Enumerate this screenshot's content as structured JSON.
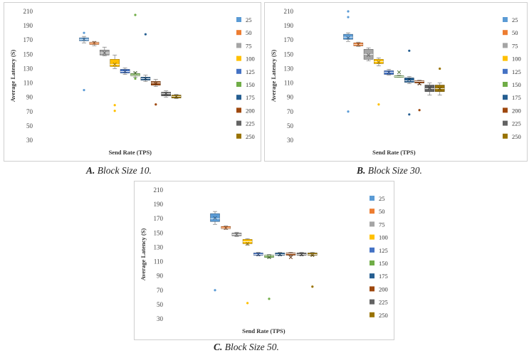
{
  "colors": {
    "25": "#5b9bd5",
    "50": "#ed7d31",
    "75": "#a5a5a5",
    "100": "#ffc000",
    "125": "#4472c4",
    "150": "#70ad47",
    "175": "#255e91",
    "200": "#9e480e",
    "225": "#636363",
    "250": "#997300"
  },
  "captions": [
    {
      "letter": "A.",
      "text": "Block Size 10."
    },
    {
      "letter": "B.",
      "text": "Block Size 30."
    },
    {
      "letter": "C.",
      "text": "Block Size 50."
    }
  ],
  "chart_data": [
    {
      "type": "boxplot",
      "title": "A. Block Size 10.",
      "xlabel": "Send Rate (TPS)",
      "ylabel": "Average Latency (S)",
      "ylim": [
        30,
        210
      ],
      "yticks": [
        30,
        50,
        70,
        90,
        110,
        130,
        150,
        170,
        190,
        210
      ],
      "legend": [
        "25",
        "50",
        "75",
        "100",
        "125",
        "150",
        "175",
        "200",
        "225",
        "250"
      ],
      "boxes": [
        {
          "name": "25",
          "min": 166,
          "q1": 169,
          "median": 171,
          "q3": 173,
          "max": 175,
          "mean": 171,
          "outliers": [
            180,
            100
          ]
        },
        {
          "name": "50",
          "min": 162,
          "q1": 164,
          "median": 166,
          "q3": 167,
          "max": 168,
          "mean": 166,
          "outliers": []
        },
        {
          "name": "75",
          "min": 148,
          "q1": 149,
          "median": 152,
          "q3": 156,
          "max": 160,
          "mean": 152,
          "outliers": []
        },
        {
          "name": "100",
          "min": 130,
          "q1": 133,
          "median": 136,
          "q3": 143,
          "max": 149,
          "mean": 136,
          "outliers": [
            79,
            71
          ]
        },
        {
          "name": "125",
          "min": 122,
          "q1": 124,
          "median": 126,
          "q3": 129,
          "max": 131,
          "mean": 126,
          "outliers": []
        },
        {
          "name": "150",
          "min": 118,
          "q1": 120,
          "median": 121,
          "q3": 123,
          "max": 125,
          "mean": 124,
          "outliers": [
            205,
            116
          ]
        },
        {
          "name": "175",
          "min": 112,
          "q1": 114,
          "median": 116,
          "q3": 118,
          "max": 121,
          "mean": 116,
          "outliers": [
            178
          ]
        },
        {
          "name": "200",
          "min": 105,
          "q1": 107,
          "median": 110,
          "q3": 112,
          "max": 115,
          "mean": 109,
          "outliers": [
            80
          ]
        },
        {
          "name": "225",
          "min": 90,
          "q1": 92,
          "median": 95,
          "q3": 97,
          "max": 99,
          "mean": 95,
          "outliers": []
        },
        {
          "name": "250",
          "min": 88,
          "q1": 89,
          "median": 91,
          "q3": 93,
          "max": 94,
          "mean": 91,
          "outliers": []
        }
      ]
    },
    {
      "type": "boxplot",
      "title": "B. Block Size 30.",
      "xlabel": "Send Rate (TPS)",
      "ylabel": "Average Latency (S)",
      "ylim": [
        30,
        210
      ],
      "yticks": [
        30,
        50,
        70,
        90,
        110,
        130,
        150,
        170,
        190,
        210
      ],
      "legend": [
        "25",
        "50",
        "75",
        "100",
        "125",
        "150",
        "175",
        "200",
        "225",
        "250"
      ],
      "boxes": [
        {
          "name": "25",
          "min": 168,
          "q1": 171,
          "median": 174,
          "q3": 178,
          "max": 180,
          "mean": 173,
          "outliers": [
            210,
            202,
            70
          ]
        },
        {
          "name": "50",
          "min": 161,
          "q1": 162,
          "median": 164,
          "q3": 166,
          "max": 167,
          "mean": 164,
          "outliers": []
        },
        {
          "name": "75",
          "min": 141,
          "q1": 143,
          "median": 150,
          "q3": 157,
          "max": 159,
          "mean": 149,
          "outliers": []
        },
        {
          "name": "100",
          "min": 134,
          "q1": 137,
          "median": 140,
          "q3": 143,
          "max": 145,
          "mean": 139,
          "outliers": [
            80
          ]
        },
        {
          "name": "125",
          "min": 121,
          "q1": 122,
          "median": 125,
          "q3": 127,
          "max": 129,
          "mean": 125,
          "outliers": []
        },
        {
          "name": "150",
          "min": 118,
          "q1": 118,
          "median": 119,
          "q3": 120,
          "max": 121,
          "mean": 125,
          "outliers": []
        },
        {
          "name": "175",
          "min": 109,
          "q1": 111,
          "median": 113,
          "q3": 117,
          "max": 119,
          "mean": 115,
          "outliers": [
            155,
            66
          ]
        },
        {
          "name": "200",
          "min": 108,
          "q1": 110,
          "median": 112,
          "q3": 113,
          "max": 114,
          "mean": 109,
          "outliers": [
            72
          ]
        },
        {
          "name": "225",
          "min": 93,
          "q1": 98,
          "median": 102,
          "q3": 107,
          "max": 110,
          "mean": 103,
          "outliers": []
        },
        {
          "name": "250",
          "min": 93,
          "q1": 98,
          "median": 102,
          "q3": 107,
          "max": 110,
          "mean": 102,
          "outliers": [
            130
          ]
        }
      ]
    },
    {
      "type": "boxplot",
      "title": "C. Block Size 50.",
      "xlabel": "Send Rate (TPS)",
      "ylabel": "Average Latency (S)",
      "ylim": [
        30,
        210
      ],
      "yticks": [
        30,
        50,
        70,
        90,
        110,
        130,
        150,
        170,
        190,
        210
      ],
      "legend": [
        "25",
        "50",
        "75",
        "100",
        "125",
        "150",
        "175",
        "200",
        "225",
        "250"
      ],
      "boxes": [
        {
          "name": "25",
          "min": 162,
          "q1": 166,
          "median": 170,
          "q3": 177,
          "max": 180,
          "mean": 171,
          "outliers": [
            70
          ]
        },
        {
          "name": "50",
          "min": 155,
          "q1": 156,
          "median": 157,
          "q3": 159,
          "max": 160,
          "mean": 157,
          "outliers": []
        },
        {
          "name": "75",
          "min": 145,
          "q1": 146,
          "median": 148,
          "q3": 150,
          "max": 151,
          "mean": 148,
          "outliers": []
        },
        {
          "name": "100",
          "min": 133,
          "q1": 135,
          "median": 138,
          "q3": 141,
          "max": 142,
          "mean": 135,
          "outliers": [
            52
          ]
        },
        {
          "name": "125",
          "min": 118,
          "q1": 119,
          "median": 120,
          "q3": 122,
          "max": 123,
          "mean": 120,
          "outliers": []
        },
        {
          "name": "150",
          "min": 115,
          "q1": 116,
          "median": 118,
          "q3": 119,
          "max": 120,
          "mean": 116,
          "outliers": [
            58
          ]
        },
        {
          "name": "175",
          "min": 118,
          "q1": 119,
          "median": 120,
          "q3": 122,
          "max": 123,
          "mean": 120,
          "outliers": []
        },
        {
          "name": "200",
          "min": 118,
          "q1": 119,
          "median": 121,
          "q3": 122,
          "max": 123,
          "mean": 116,
          "outliers": []
        },
        {
          "name": "225",
          "min": 118,
          "q1": 119,
          "median": 120,
          "q3": 122,
          "max": 123,
          "mean": 120,
          "outliers": []
        },
        {
          "name": "250",
          "min": 118,
          "q1": 119,
          "median": 120,
          "q3": 122,
          "max": 123,
          "mean": 119,
          "outliers": [
            75
          ]
        }
      ]
    }
  ]
}
